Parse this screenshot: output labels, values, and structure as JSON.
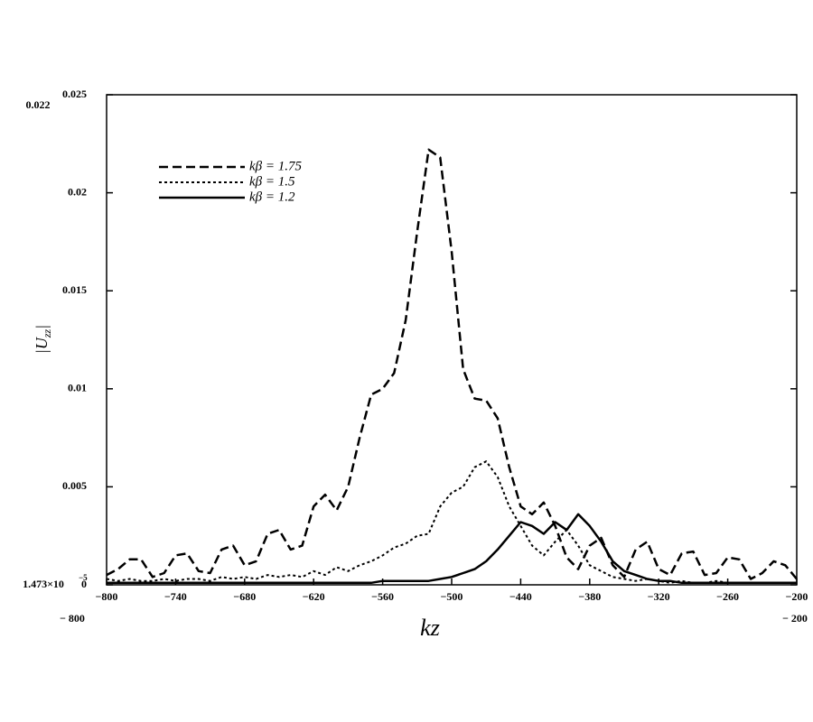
{
  "chart_data": {
    "type": "line",
    "xlabel": "kz",
    "ylabel": {
      "open": "|U",
      "subscript": "zz",
      "close": "|"
    },
    "limit_labels": {
      "ymax": "0.022",
      "ymin": "1.473×10",
      "ymin_exponent": "−5",
      "xmin": "− 800",
      "xmax": "− 200"
    },
    "xlim": [
      -800,
      -200
    ],
    "ylim": [
      0,
      0.025
    ],
    "xticks": [
      {
        "value": -800,
        "label": "−800"
      },
      {
        "value": -740,
        "label": "−740"
      },
      {
        "value": -680,
        "label": "−680"
      },
      {
        "value": -620,
        "label": "−620"
      },
      {
        "value": -560,
        "label": "−560"
      },
      {
        "value": -500,
        "label": "−500"
      },
      {
        "value": -440,
        "label": "−440"
      },
      {
        "value": -380,
        "label": "−380"
      },
      {
        "value": -320,
        "label": "−320"
      },
      {
        "value": -260,
        "label": "−260"
      },
      {
        "value": -200,
        "label": "−200"
      }
    ],
    "yticks": [
      0,
      0.005,
      0.01,
      0.015,
      0.02,
      0.025
    ],
    "legend": "upper left",
    "x": [
      -800,
      -790,
      -780,
      -770,
      -760,
      -750,
      -740,
      -730,
      -720,
      -710,
      -700,
      -690,
      -680,
      -670,
      -660,
      -650,
      -640,
      -630,
      -620,
      -610,
      -600,
      -590,
      -580,
      -570,
      -560,
      -550,
      -540,
      -530,
      -520,
      -510,
      -500,
      -490,
      -480,
      -470,
      -460,
      -450,
      -440,
      -430,
      -420,
      -410,
      -400,
      -390,
      -380,
      -370,
      -360,
      -350,
      -340,
      -330,
      -320,
      -310,
      -300,
      -290,
      -280,
      -270,
      -260,
      -250,
      -240,
      -230,
      -220,
      -210,
      -200
    ],
    "series": [
      {
        "name": "kβ = 1.75",
        "color": "#000000",
        "style": "dashed",
        "values": [
          0.0005,
          0.0008,
          0.0013,
          0.0013,
          0.0004,
          0.0006,
          0.0015,
          0.0016,
          0.0007,
          0.0006,
          0.0018,
          0.002,
          0.001,
          0.0012,
          0.0026,
          0.0028,
          0.0018,
          0.002,
          0.004,
          0.0046,
          0.0038,
          0.005,
          0.0075,
          0.0097,
          0.01,
          0.0108,
          0.0135,
          0.018,
          0.0222,
          0.0218,
          0.017,
          0.011,
          0.0095,
          0.0094,
          0.0085,
          0.006,
          0.004,
          0.0036,
          0.0042,
          0.003,
          0.0014,
          0.0008,
          0.002,
          0.0024,
          0.001,
          0.0004,
          0.0018,
          0.0022,
          0.0008,
          0.0005,
          0.0016,
          0.0017,
          0.0005,
          0.0006,
          0.0014,
          0.0013,
          0.0003,
          0.0006,
          0.0012,
          0.001,
          0.0003
        ]
      },
      {
        "name": "kβ = 1.5",
        "color": "#000000",
        "style": "dotted",
        "values": [
          0.0003,
          0.0002,
          0.0003,
          0.0002,
          0.0002,
          0.0003,
          0.0002,
          0.0003,
          0.0003,
          0.0002,
          0.0004,
          0.0003,
          0.0004,
          0.0003,
          0.0005,
          0.0004,
          0.0005,
          0.0004,
          0.0007,
          0.0005,
          0.0009,
          0.0007,
          0.001,
          0.0012,
          0.0015,
          0.0019,
          0.0021,
          0.0025,
          0.0026,
          0.004,
          0.0047,
          0.005,
          0.006,
          0.0063,
          0.0055,
          0.004,
          0.003,
          0.002,
          0.0015,
          0.0022,
          0.0028,
          0.002,
          0.001,
          0.0007,
          0.0004,
          0.0003,
          0.0002,
          0.0003,
          0.0002,
          0.0001,
          0.0002,
          0.0001,
          0.0001,
          0.0002,
          0.0001,
          0.0001,
          0.0001,
          0.0001,
          0.0001,
          0.0001,
          0.0001
        ]
      },
      {
        "name": "kβ = 1.2",
        "color": "#000000",
        "style": "solid",
        "values": [
          0.0001,
          0.0001,
          0.0001,
          0.0001,
          0.0001,
          0.0001,
          0.0001,
          0.0001,
          0.0001,
          0.0001,
          0.0001,
          0.0001,
          0.0001,
          0.0001,
          0.0001,
          0.0001,
          0.0001,
          0.0001,
          0.0001,
          0.0001,
          0.0001,
          0.0001,
          0.0001,
          0.0001,
          0.0002,
          0.0002,
          0.0002,
          0.0002,
          0.0002,
          0.0003,
          0.0004,
          0.0006,
          0.0008,
          0.0012,
          0.0018,
          0.0025,
          0.0032,
          0.003,
          0.0026,
          0.0032,
          0.0028,
          0.0036,
          0.003,
          0.0022,
          0.0012,
          0.0007,
          0.0005,
          0.0003,
          0.0002,
          0.0002,
          0.0001,
          0.0001,
          0.0001,
          0.0001,
          0.0001,
          0.0001,
          0.0001,
          0.0001,
          0.0001,
          0.0001,
          0.0001
        ]
      }
    ]
  }
}
